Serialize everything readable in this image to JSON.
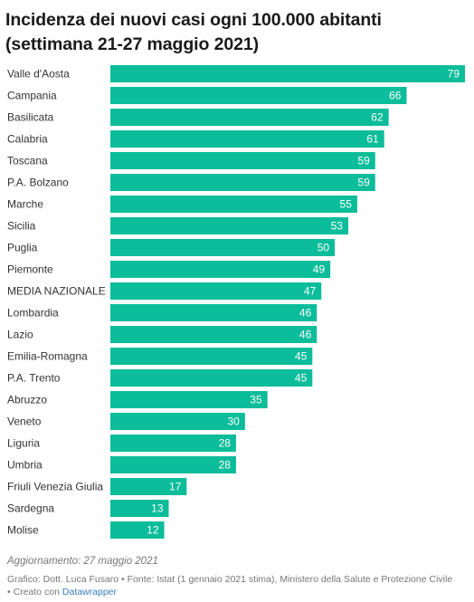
{
  "title": {
    "line1": "Incidenza dei nuovi casi ogni 100.000 abitanti",
    "line2": "(settimana 21-27 maggio 2021)"
  },
  "colors": {
    "bar": "#0bbd9a",
    "value_label": "#ffffff",
    "category_label": "#333333"
  },
  "chart_data": {
    "type": "bar",
    "orientation": "horizontal",
    "categories": [
      "Valle d'Aosta",
      "Campania",
      "Basilicata",
      "Calabria",
      "Toscana",
      "P.A. Bolzano",
      "Marche",
      "Sicilia",
      "Puglia",
      "Piemonte",
      "MEDIA NAZIONALE",
      "Lombardia",
      "Lazio",
      "Emilia-Romagna",
      "P.A. Trento",
      "Abruzzo",
      "Veneto",
      "Liguria",
      "Umbria",
      "Friuli Venezia Giulia",
      "Sardegna",
      "Molise"
    ],
    "values": [
      79,
      66,
      62,
      61,
      59,
      59,
      55,
      53,
      50,
      49,
      47,
      46,
      46,
      45,
      45,
      35,
      30,
      28,
      28,
      17,
      13,
      12
    ],
    "xlim": [
      0,
      79
    ],
    "grid": false,
    "data_labels": "inside-end"
  },
  "footer": {
    "updated": "Aggiornamento: 27 maggio 2021",
    "credits_line1": "Grafico: Dott. Luca Fusaro • Fonte: Istat (1 gennaio 2021 stima), Ministero della Salute e Protezione Civile",
    "credits_prefix": "• Creato con",
    "credits_link": "Datawrapper"
  }
}
